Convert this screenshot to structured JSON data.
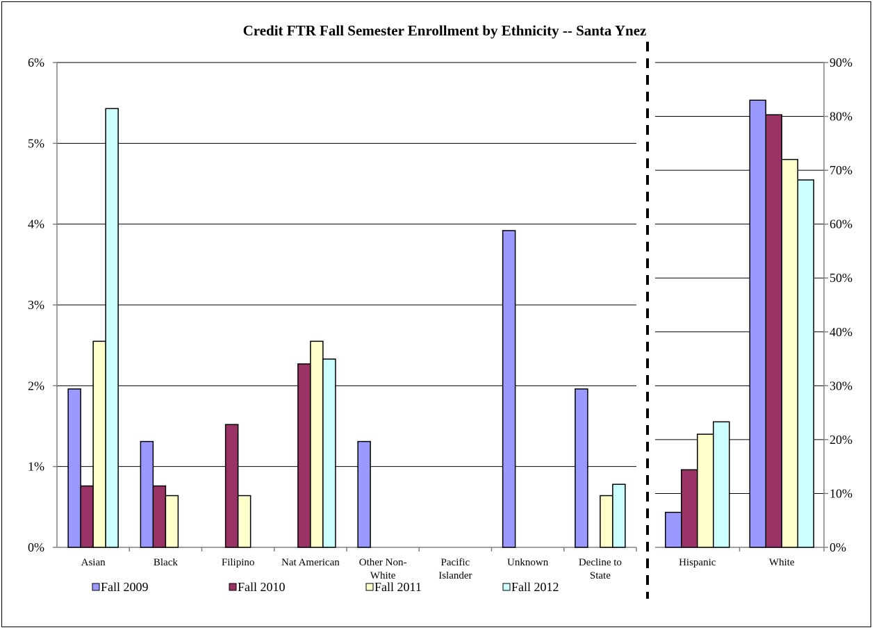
{
  "chart_data": {
    "type": "bar",
    "title": "Credit FTR Fall Semester Enrollment by Ethnicity -- Santa Ynez",
    "series_names": [
      "Fall 2009",
      "Fall 2010",
      "Fall 2011",
      "Fall 2012"
    ],
    "colors": [
      "#9999ff",
      "#993366",
      "#ffffcc",
      "#ccffff"
    ],
    "left_panel": {
      "ylim": [
        0,
        6
      ],
      "yticks": [
        "0%",
        "1%",
        "2%",
        "3%",
        "4%",
        "5%",
        "6%"
      ],
      "categories": [
        [
          "Asian"
        ],
        [
          "Black"
        ],
        [
          "Filipino"
        ],
        [
          "Nat American"
        ],
        [
          "Other Non-",
          "White"
        ],
        [
          "Pacific",
          "Islander"
        ],
        [
          "Unknown"
        ],
        [
          "Decline to",
          "State"
        ]
      ],
      "series": [
        {
          "name": "Fall 2009",
          "values": [
            1.96,
            1.31,
            0,
            0,
            1.31,
            0,
            3.92,
            1.96
          ]
        },
        {
          "name": "Fall 2010",
          "values": [
            0.76,
            0.76,
            1.52,
            2.27,
            0,
            0,
            0,
            0
          ]
        },
        {
          "name": "Fall 2011",
          "values": [
            2.55,
            0.64,
            0.64,
            2.55,
            0,
            0,
            0,
            0.64
          ]
        },
        {
          "name": "Fall 2012",
          "values": [
            5.43,
            0,
            0,
            2.33,
            0,
            0,
            0,
            0.78
          ]
        }
      ]
    },
    "right_panel": {
      "ylim": [
        0,
        90
      ],
      "yticks": [
        "0%",
        "10%",
        "20%",
        "30%",
        "40%",
        "50%",
        "60%",
        "70%",
        "80%",
        "90%"
      ],
      "categories": [
        [
          "Hispanic"
        ],
        [
          "White"
        ]
      ],
      "series": [
        {
          "name": "Fall 2009",
          "values": [
            6.5,
            83.0
          ]
        },
        {
          "name": "Fall 2010",
          "values": [
            14.4,
            80.3
          ]
        },
        {
          "name": "Fall 2011",
          "values": [
            21.0,
            72.0
          ]
        },
        {
          "name": "Fall 2012",
          "values": [
            23.3,
            68.2
          ]
        }
      ]
    },
    "grid": true,
    "legend": "bottom"
  }
}
